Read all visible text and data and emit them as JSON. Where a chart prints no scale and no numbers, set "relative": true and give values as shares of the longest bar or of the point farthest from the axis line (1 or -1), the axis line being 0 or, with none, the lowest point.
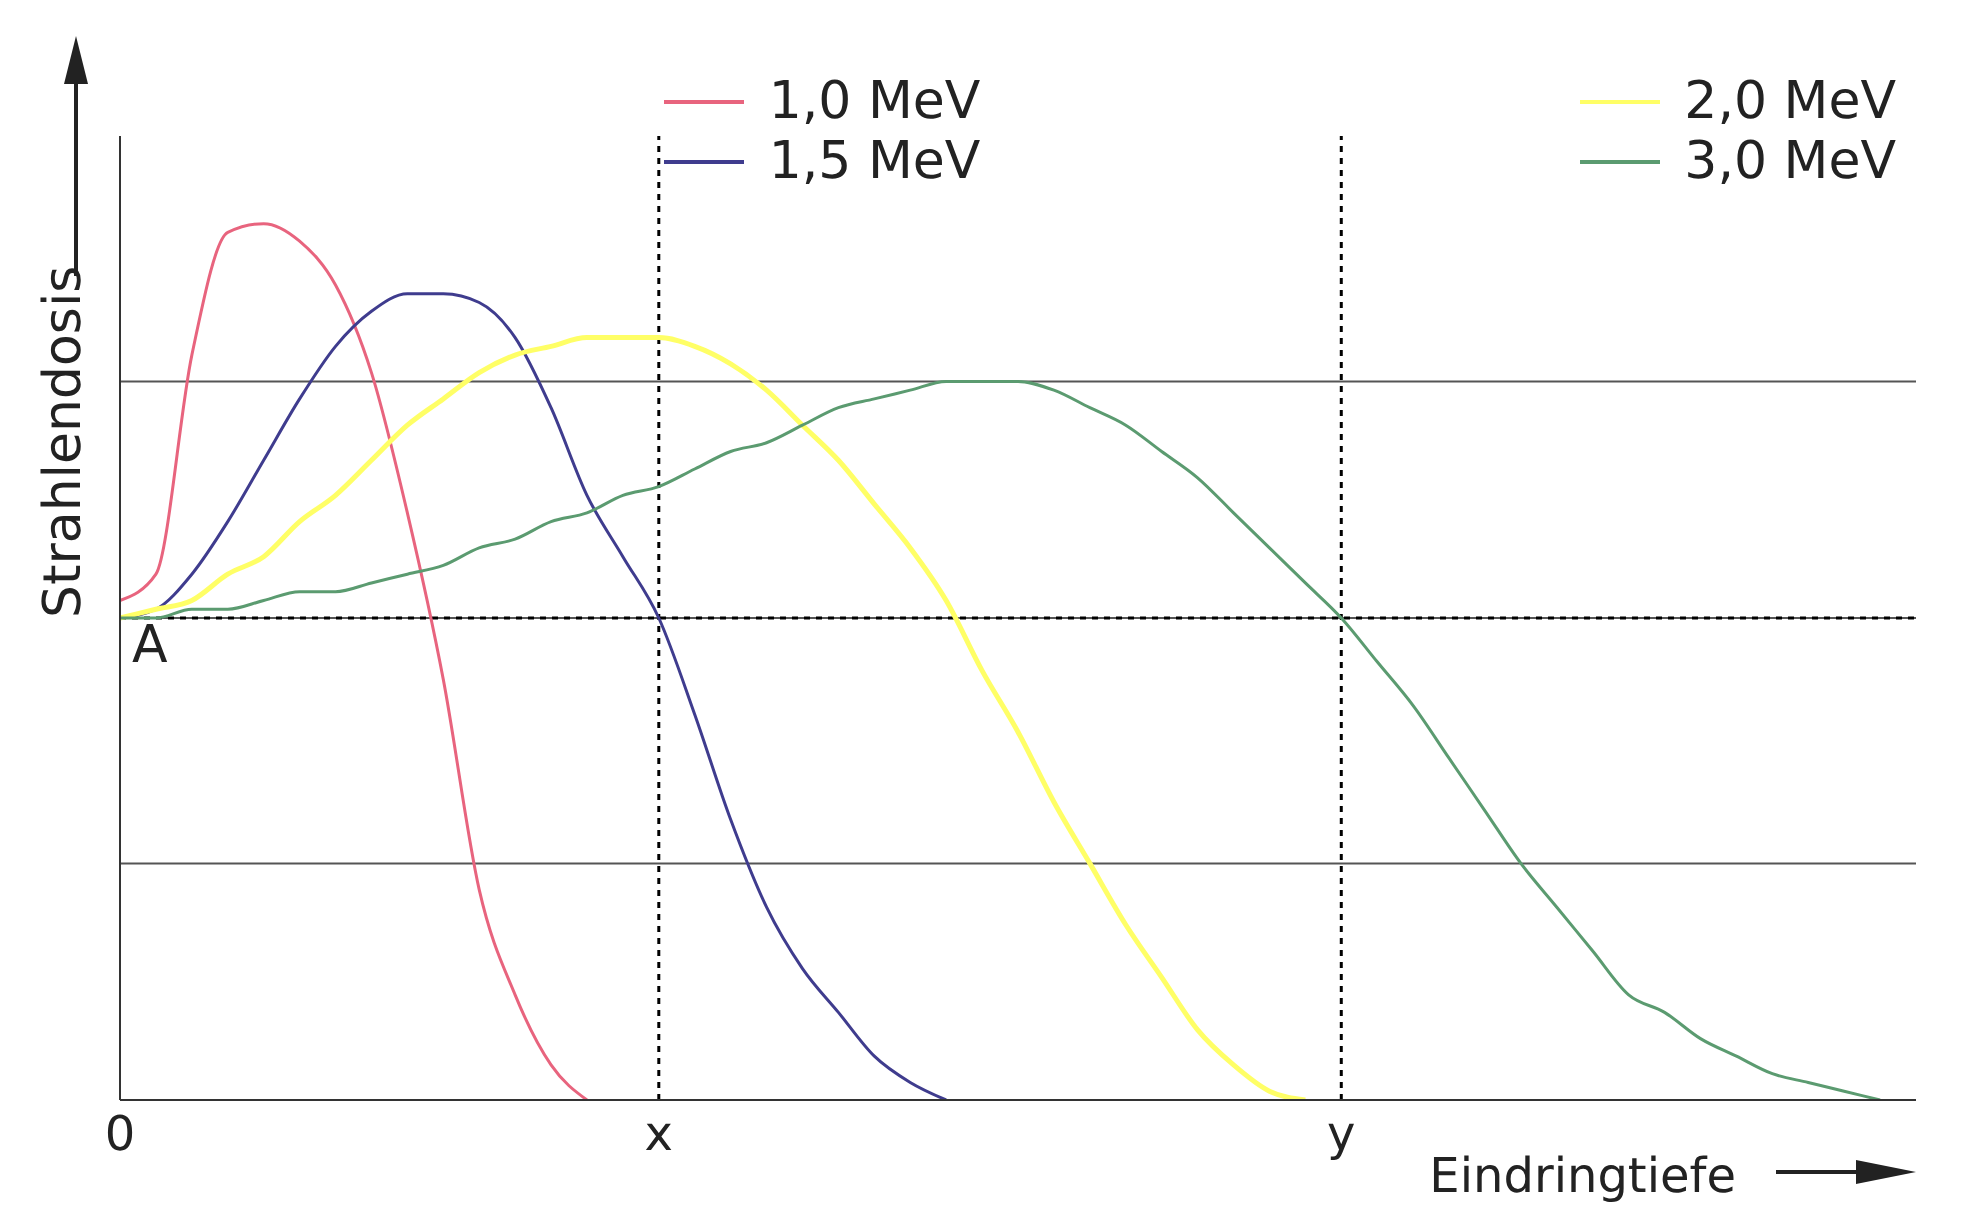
{
  "chart_data": {
    "type": "line",
    "relative": true,
    "xlabel": "Eindringtiefe",
    "ylabel": "Strahlendosis",
    "legend": "top",
    "marker": "none",
    "line_style": "solid",
    "categories": [
      "0",
      null,
      null,
      null,
      null,
      null,
      null,
      null,
      null,
      null,
      null,
      null,
      null,
      null,
      null,
      "x",
      null,
      null,
      null,
      null,
      null,
      null,
      null,
      null,
      null,
      null,
      null,
      null,
      null,
      null,
      null,
      null,
      null,
      null,
      "y",
      null,
      null,
      null,
      null,
      null,
      null,
      null,
      null,
      null,
      null,
      null,
      null,
      null,
      null,
      null,
      null
    ],
    "series": [
      {
        "name": "1,0 MeV",
        "color": "#e8647e",
        "values": [
          0.57,
          0.6,
          0.85,
          0.99,
          1,
          0.98,
          0.93,
          0.83,
          0.67,
          0.48,
          0.24,
          0.12,
          0.04,
          0,
          null,
          null,
          null,
          null,
          null,
          null,
          null,
          null,
          null,
          null,
          null,
          null,
          null,
          null,
          null,
          null,
          null,
          null,
          null,
          null,
          null,
          null,
          null,
          null,
          null,
          null,
          null,
          null,
          null,
          null,
          null,
          null,
          null,
          null,
          null,
          null,
          null
        ]
      },
      {
        "name": "1,5 MeV",
        "color": "#3f3c8e",
        "values": [
          0.55,
          0.56,
          0.6,
          0.66,
          0.73,
          0.8,
          0.86,
          0.9,
          0.92,
          0.92,
          0.91,
          0.87,
          0.79,
          0.69,
          0.62,
          0.55,
          0.44,
          0.32,
          0.22,
          0.15,
          0.1,
          0.05,
          0.02,
          0,
          null,
          null,
          null,
          null,
          null,
          null,
          null,
          null,
          null,
          null,
          null,
          null,
          null,
          null,
          null,
          null,
          null,
          null,
          null,
          null,
          null,
          null,
          null,
          null,
          null,
          null,
          null
        ]
      },
      {
        "name": "2,0 MeV",
        "color": "#ffff66",
        "values": [
          0.55,
          0.56,
          0.57,
          0.6,
          0.62,
          0.66,
          0.69,
          0.73,
          0.77,
          0.8,
          0.83,
          0.85,
          0.86,
          0.87,
          0.87,
          0.87,
          0.86,
          0.84,
          0.81,
          0.77,
          0.73,
          0.68,
          0.63,
          0.57,
          0.49,
          0.42,
          0.34,
          0.27,
          0.2,
          0.14,
          0.08,
          0.04,
          0.01,
          0,
          null,
          null,
          null,
          null,
          null,
          null,
          null,
          null,
          null,
          null,
          null,
          null,
          null,
          null,
          null,
          null,
          null
        ]
      },
      {
        "name": "3,0 MeV",
        "color": "#5b9b70",
        "values": [
          0.55,
          0.55,
          0.56,
          0.56,
          0.57,
          0.58,
          0.58,
          0.59,
          0.6,
          0.61,
          0.63,
          0.64,
          0.66,
          0.67,
          0.69,
          0.7,
          0.72,
          0.74,
          0.75,
          0.77,
          0.79,
          0.8,
          0.81,
          0.82,
          0.82,
          0.82,
          0.81,
          0.79,
          0.77,
          0.74,
          0.71,
          0.67,
          0.63,
          0.59,
          0.55,
          0.5,
          0.45,
          0.39,
          0.33,
          0.27,
          0.22,
          0.17,
          0.12,
          0.1,
          0.07,
          0.05,
          0.03,
          0.02,
          0.01,
          0,
          null
        ]
      }
    ],
    "ref_lines": [
      {
        "axis": "y",
        "value": 0.27,
        "color": "#555555",
        "line_style": "solid"
      },
      {
        "axis": "y",
        "value": 0.55,
        "color": "#555555",
        "line_style": "solid"
      },
      {
        "axis": "y",
        "value": 0.82,
        "color": "#555555",
        "line_style": "solid"
      },
      {
        "axis": "y",
        "value": 0.55,
        "color": "#000000",
        "line_style": "dotted"
      },
      {
        "axis": "x",
        "value": "x",
        "color": "#000000",
        "line_style": "dotted"
      },
      {
        "axis": "x",
        "value": "y",
        "color": "#000000",
        "line_style": "dotted"
      }
    ],
    "annotations": [
      "A"
    ]
  }
}
